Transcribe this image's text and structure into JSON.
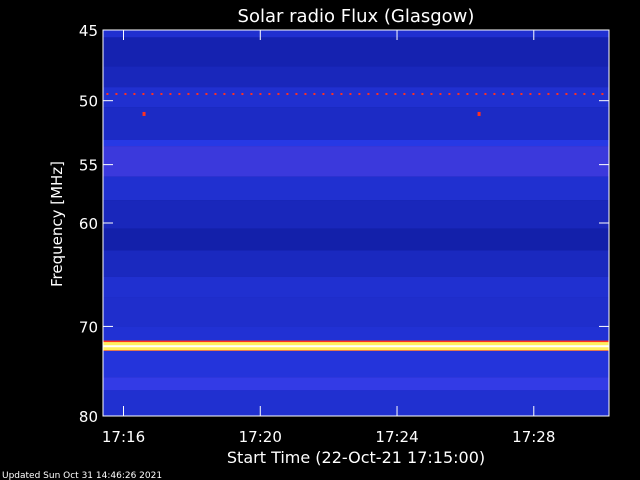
{
  "footer": {
    "updated": "Updated Sun Oct 31 14:46:26 2021"
  },
  "colors": {
    "background": "#000000",
    "axis": "#ffffff",
    "low": "#0a1590",
    "mid": "#2b3df0",
    "band": "#7a2a8a",
    "bright": "#fff060",
    "hot": "#ff3020"
  },
  "chart_data": {
    "type": "heatmap",
    "title": "Solar radio Flux (Glasgow)",
    "xlabel": "Start Time (22-Oct-21 17:15:00)",
    "ylabel": "Frequency [MHz]",
    "x_unit": "minutes",
    "xlim": [
      15.4,
      30.2
    ],
    "ylim": [
      45,
      80
    ],
    "y_scale": "log",
    "x_ticks": [
      {
        "value": 16,
        "label": "17:16"
      },
      {
        "value": 20,
        "label": "17:20"
      },
      {
        "value": 24,
        "label": "17:24"
      },
      {
        "value": 28,
        "label": "17:28"
      }
    ],
    "y_ticks": [
      {
        "value": 45,
        "label": "45"
      },
      {
        "value": 50,
        "label": "50"
      },
      {
        "value": 55,
        "label": "55"
      },
      {
        "value": 60,
        "label": "60"
      },
      {
        "value": 70,
        "label": "70"
      },
      {
        "value": 80,
        "label": "80"
      }
    ],
    "bands": [
      {
        "from": 45.0,
        "to": 45.5,
        "level": 0.3
      },
      {
        "from": 45.5,
        "to": 47.5,
        "level": 0.15
      },
      {
        "from": 47.5,
        "to": 49.0,
        "level": 0.2
      },
      {
        "from": 49.0,
        "to": 50.5,
        "level": 0.3
      },
      {
        "from": 50.5,
        "to": 53.0,
        "level": 0.25
      },
      {
        "from": 53.0,
        "to": 53.5,
        "level": 0.4
      },
      {
        "from": 53.5,
        "to": 56.0,
        "level": 0.55
      },
      {
        "from": 56.0,
        "to": 58.0,
        "level": 0.3
      },
      {
        "from": 58.0,
        "to": 60.5,
        "level": 0.2
      },
      {
        "from": 60.5,
        "to": 62.5,
        "level": 0.12
      },
      {
        "from": 62.5,
        "to": 65.0,
        "level": 0.22
      },
      {
        "from": 65.0,
        "to": 67.0,
        "level": 0.3
      },
      {
        "from": 67.0,
        "to": 70.0,
        "level": 0.28
      },
      {
        "from": 70.0,
        "to": 71.6,
        "level": 0.32
      },
      {
        "from": 71.6,
        "to": 72.6,
        "level": 1.0
      },
      {
        "from": 72.6,
        "to": 75.5,
        "level": 0.35
      },
      {
        "from": 75.5,
        "to": 77.0,
        "level": 0.5
      },
      {
        "from": 77.0,
        "to": 80.0,
        "level": 0.3
      }
    ],
    "markers": [
      {
        "type": "dotted-line",
        "freq": 49.5,
        "from": 15.5,
        "to": 30.1
      },
      {
        "type": "point",
        "time": 16.6,
        "freq": 51.0
      },
      {
        "type": "point",
        "time": 26.4,
        "freq": 51.0
      }
    ]
  }
}
